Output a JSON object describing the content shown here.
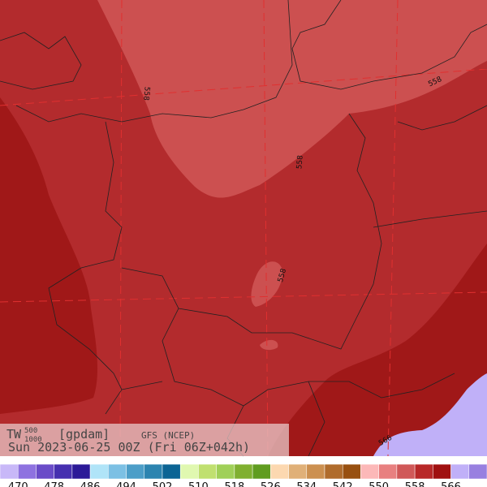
{
  "header": {
    "field": "TW",
    "upper_level": "500",
    "lower_level": "1000",
    "units": "[gpdam]",
    "model": "GFS (NCEP)",
    "valid_time": "Sun 2023-06-25 00Z (Fri 06Z+042h)"
  },
  "contour_labels": [
    "558",
    "558",
    "558",
    "558",
    "566"
  ],
  "colorbar": {
    "colors": [
      "#c8b8f8",
      "#8e72e0",
      "#6a4cc8",
      "#4630b0",
      "#2c1a98",
      "#b0e4f8",
      "#7cc0e4",
      "#4c9ec8",
      "#2c84b0",
      "#0c6494",
      "#e0f8b0",
      "#c0e070",
      "#a0d058",
      "#80b030",
      "#609c20",
      "#fcd8b0",
      "#e0b078",
      "#cc9050",
      "#b06c2c",
      "#985010",
      "#fcb8b8",
      "#e88080",
      "#d05858",
      "#b82828",
      "#a01010",
      "#c0b0f8",
      "#9880e0"
    ],
    "labels": [
      470,
      478,
      486,
      494,
      502,
      510,
      518,
      526,
      534,
      542,
      550,
      558,
      566
    ]
  }
}
